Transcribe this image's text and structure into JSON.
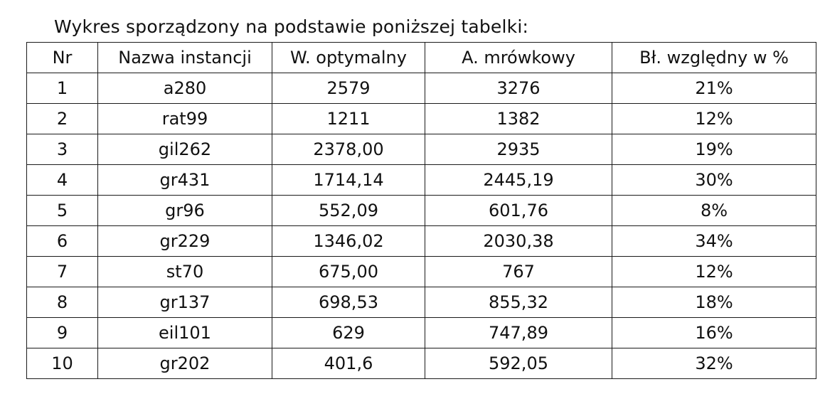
{
  "caption": "Wykres sporządzony na podstawie poniższej tabelki:",
  "table": {
    "headers": [
      "Nr",
      "Nazwa instancji",
      "W. optymalny",
      "A. mrówkowy",
      "Bł. względny w %"
    ],
    "rows": [
      [
        "1",
        "a280",
        "2579",
        "3276",
        "21%"
      ],
      [
        "2",
        "rat99",
        "1211",
        "1382",
        "12%"
      ],
      [
        "3",
        "gil262",
        "2378,00",
        "2935",
        "19%"
      ],
      [
        "4",
        "gr431",
        "1714,14",
        "2445,19",
        "30%"
      ],
      [
        "5",
        "gr96",
        "552,09",
        "601,76",
        "8%"
      ],
      [
        "6",
        "gr229",
        "1346,02",
        "2030,38",
        "34%"
      ],
      [
        "7",
        "st70",
        "675,00",
        "767",
        "12%"
      ],
      [
        "8",
        "gr137",
        "698,53",
        "855,32",
        "18%"
      ],
      [
        "9",
        "eil101",
        "629",
        "747,89",
        "16%"
      ],
      [
        "10",
        "gr202",
        "401,6",
        "592,05",
        "32%"
      ]
    ]
  }
}
